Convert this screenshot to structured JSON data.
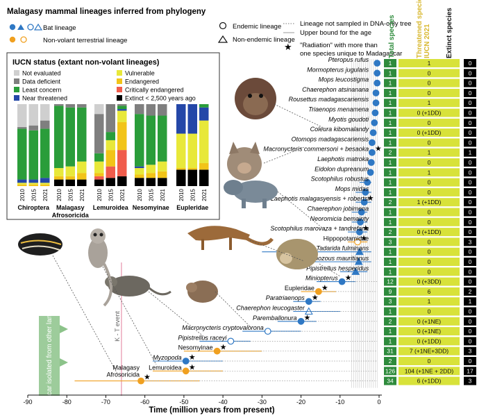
{
  "title": "Malagasy mammal lineages inferred from phylogeny",
  "legend": {
    "bat": "Bat lineage",
    "nonvolant": "Non-volant terrestrial lineage",
    "endemic": "Endemic lineage",
    "nonendemic": "Non-endemic lineage",
    "dotted": "Lineage not sampled in DNA-only tree",
    "upper": "Upper bound for the age",
    "radiation1": "\"Radiation\" with more than",
    "radiation2": "one species unique to Madagascar"
  },
  "colors": {
    "bat": "#2f78c4",
    "nonvolant": "#f0a020",
    "ne": "#cfcfcf",
    "dd": "#7f7f7f",
    "lc": "#2a9d3a",
    "nt": "#2447a8",
    "vu": "#e8e83a",
    "en": "#f2c418",
    "cr": "#f05c4c",
    "ex": "#000000",
    "col_total_bg": "#2e8b3c",
    "col_threat_bg": "#d8e23a",
    "col_extinct_bg": "#000000",
    "kt": "#e07b9a",
    "isolation": "#8cc38a"
  },
  "iucn": {
    "title": "IUCN status (extant non-volant lineages)",
    "categories": [
      {
        "key": "ne",
        "label": "Not evaluated"
      },
      {
        "key": "dd",
        "label": "Data deficient"
      },
      {
        "key": "lc",
        "label": "Least concern"
      },
      {
        "key": "nt",
        "label": "Near threatened"
      },
      {
        "key": "vu",
        "label": "Vulnerable"
      },
      {
        "key": "en",
        "label": "Endangered"
      },
      {
        "key": "cr",
        "label": "Critically endangered"
      },
      {
        "key": "ex",
        "label": "Extinct < 2,500 years ago"
      }
    ],
    "years": [
      "2010",
      "2015",
      "2021"
    ],
    "groups": [
      "Chiroptera",
      "Malagasy Afrosoricida",
      "Lemuroidea",
      "Nesomyinae",
      "Eupleridae"
    ]
  },
  "chart_data": {
    "type": "scatter",
    "xlabel": "Time (million years from present)",
    "xlim": [
      -90,
      0
    ],
    "xticks": [
      -90,
      -80,
      -70,
      -60,
      -50,
      -40,
      -30,
      -20,
      -10,
      0
    ],
    "annotations": {
      "kt": "K - T event",
      "isolation": "Madagascar isolated from other landmasses"
    },
    "column_headers": [
      "Total species",
      "Threatened species IUCN 2021",
      "Extinct species"
    ],
    "lineages": [
      {
        "name": "Pteropus rufus",
        "type": "bat",
        "age": -0.5,
        "total": "1",
        "threat": "1",
        "extinct": "0"
      },
      {
        "name": "Mormopterus jugularis",
        "type": "bat",
        "age": -0.5,
        "total": "1",
        "threat": "0",
        "extinct": "0"
      },
      {
        "name": "Mops leucostigma",
        "type": "bat",
        "age": -0.5,
        "total": "1",
        "threat": "0",
        "extinct": "0"
      },
      {
        "name": "Chaerephon atsinanana",
        "type": "bat",
        "age": -0.8,
        "total": "1",
        "threat": "0",
        "extinct": "0"
      },
      {
        "name": "Rousettus madagascariensis",
        "type": "bat",
        "age": -0.8,
        "total": "1",
        "threat": "1",
        "extinct": "0"
      },
      {
        "name": "Triaenops menamena",
        "type": "bat",
        "age": -1.0,
        "total": "1",
        "threat": "0 (+1DD)",
        "extinct": "0"
      },
      {
        "name": "Myotis goudoti",
        "type": "bat",
        "age": -1.2,
        "total": "1",
        "threat": "0",
        "extinct": "0"
      },
      {
        "name": "Coleura kibomalandy",
        "type": "bat",
        "age": -1.5,
        "total": "1",
        "threat": "0 (+1DD)",
        "extinct": "0"
      },
      {
        "name": "Otomops madagascariensis",
        "type": "bat",
        "age": -1.8,
        "total": "1",
        "threat": "0",
        "extinct": "0"
      },
      {
        "name": "Macronycteris commersoni + besaoka",
        "type": "bat",
        "age": -1.8,
        "total": "2",
        "threat": "1",
        "extinct": "1",
        "star": true
      },
      {
        "name": "Laephotis matroka",
        "type": "bat",
        "age": -2.0,
        "total": "1",
        "threat": "0",
        "extinct": "0"
      },
      {
        "name": "Eidolon dupreanum",
        "type": "bat",
        "age": -2.2,
        "total": "1",
        "threat": "1",
        "extinct": "0"
      },
      {
        "name": "Scotophilus robustus",
        "type": "bat",
        "age": -3.0,
        "total": "1",
        "threat": "0",
        "extinct": "0"
      },
      {
        "name": "Mops midas",
        "type": "bat",
        "age": -3.5,
        "total": "1",
        "threat": "0",
        "extinct": "0"
      },
      {
        "name": "Laephotis malagasyensis + robertsi",
        "type": "bat",
        "age": -3.8,
        "total": "2",
        "threat": "1 (+1DD)",
        "extinct": "0",
        "star": true
      },
      {
        "name": "Chaerephon jobimena",
        "type": "bat",
        "age": -4.5,
        "total": "1",
        "threat": "0",
        "extinct": "0"
      },
      {
        "name": "Neoromicia bemainty",
        "type": "bat",
        "age": -4.8,
        "total": "1",
        "threat": "0",
        "extinct": "0"
      },
      {
        "name": "Scotophilus marovaza + tandrefana",
        "type": "bat",
        "age": -5.0,
        "total": "2",
        "threat": "0 (+1DD)",
        "extinct": "0",
        "star": true
      },
      {
        "name": "Hippopotamidae",
        "type": "nonvolant",
        "age": -5.5,
        "total": "3",
        "threat": "0",
        "extinct": "3",
        "star": true
      },
      {
        "name": "Tadarida fulminans",
        "type": "bat",
        "age": -5.0,
        "total": "1",
        "threat": "0",
        "extinct": "0",
        "nonendemic": true
      },
      {
        "name": "Taphozous mauritianus",
        "type": "bat",
        "age": -5.2,
        "total": "1",
        "threat": "0",
        "extinct": "0",
        "nonendemic": true
      },
      {
        "name": "Pipistrellus hesperidus",
        "type": "bat",
        "age": -6.0,
        "total": "1",
        "threat": "0",
        "extinct": "0",
        "nonendemic": true
      },
      {
        "name": "Miniopterus",
        "type": "bat",
        "age": -9.5,
        "total": "12",
        "threat": "0 (+3DD)",
        "extinct": "0",
        "star": true
      },
      {
        "name": "Eupleridae",
        "type": "nonvolant",
        "age": -15.5,
        "total": "9",
        "threat": "6",
        "extinct": "2",
        "star": true
      },
      {
        "name": "Paratriaenops",
        "type": "bat",
        "age": -18.0,
        "total": "3",
        "threat": "1",
        "extinct": "1",
        "star": true
      },
      {
        "name": "Chaerephon leucogaster",
        "type": "bat",
        "age": -18.0,
        "total": "1",
        "threat": "0",
        "extinct": "0",
        "nonendemic": true
      },
      {
        "name": "Paremballonura",
        "type": "bat",
        "age": -20.0,
        "total": "2",
        "threat": "0 (+1NE)",
        "extinct": "0",
        "star": true
      },
      {
        "name": "Macronycteris cryptovalorona",
        "type": "bat",
        "age": -28.5,
        "total": "1",
        "threat": "0 (+1NE)",
        "extinct": "0"
      },
      {
        "name": "Pipistrellus raceyi",
        "type": "bat",
        "age": -38.0,
        "total": "1",
        "threat": "0 (+1DD)",
        "extinct": "0"
      },
      {
        "name": "Nesomyinae",
        "type": "nonvolant",
        "age": -41.5,
        "total": "31",
        "threat": "7 (+1NE+3DD)",
        "extinct": "3",
        "star": true
      },
      {
        "name": "Myzopoda",
        "type": "bat",
        "age": -49.5,
        "total": "2",
        "threat": "0",
        "extinct": "0",
        "star": true
      },
      {
        "name": "Lemuroidea",
        "type": "nonvolant",
        "age": -49.5,
        "total": "126",
        "threat": "104 (+1NE + 2DD)",
        "extinct": "17",
        "star": true
      },
      {
        "name": "Malagasy Afrosoricida",
        "type": "nonvolant",
        "age": -61.0,
        "total": "34",
        "threat": "6 (+1DD)",
        "extinct": "3",
        "star": true
      }
    ]
  }
}
